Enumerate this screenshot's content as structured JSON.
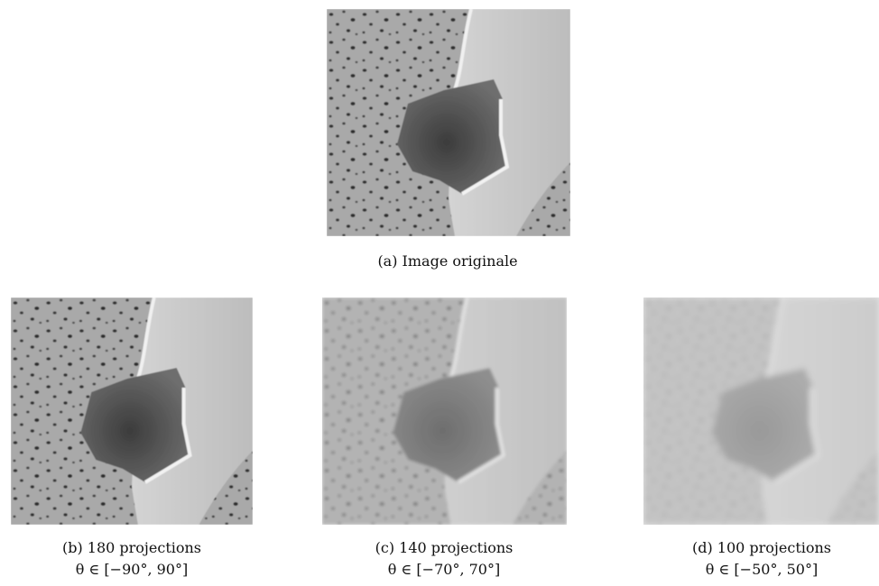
{
  "figures": [
    {
      "caption": "(a) Image originale"
    },
    {
      "caption": "(b) 180 projections",
      "subcaption": "θ ∈ [−90°, 90°]"
    },
    {
      "caption": "(c) 140 projections",
      "subcaption": "θ ∈ [−70°, 70°]"
    },
    {
      "caption": "(d) 100 projections",
      "subcaption": "θ ∈ [−50°, 50°]"
    }
  ]
}
